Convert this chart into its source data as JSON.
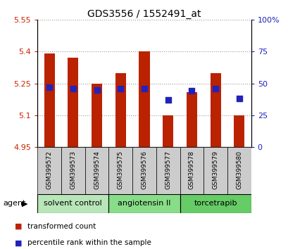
{
  "title": "GDS3556 / 1552491_at",
  "samples": [
    "GSM399572",
    "GSM399573",
    "GSM399574",
    "GSM399575",
    "GSM399576",
    "GSM399577",
    "GSM399578",
    "GSM399579",
    "GSM399580"
  ],
  "bar_values": [
    5.39,
    5.37,
    5.25,
    5.3,
    5.4,
    5.1,
    5.21,
    5.3,
    5.1
  ],
  "bar_base": 4.95,
  "percentile_values": [
    47,
    46,
    45,
    46,
    46,
    37,
    44,
    46,
    38
  ],
  "ylim_left": [
    4.95,
    5.55
  ],
  "ylim_right": [
    0,
    100
  ],
  "yticks_left": [
    4.95,
    5.1,
    5.25,
    5.4,
    5.55
  ],
  "yticks_right": [
    0,
    25,
    50,
    75,
    100
  ],
  "ytick_labels_left": [
    "4.95",
    "5.1",
    "5.25",
    "5.4",
    "5.55"
  ],
  "ytick_labels_right": [
    "0",
    "25",
    "50",
    "75",
    "100%"
  ],
  "bar_color": "#bb2200",
  "dot_color": "#2222bb",
  "grid_color": "#999999",
  "left_tick_color": "#cc2200",
  "right_tick_color": "#2222bb",
  "agent_groups": [
    {
      "label": "solvent control",
      "start": 0,
      "end": 3,
      "color": "#b8e6b8"
    },
    {
      "label": "angiotensin II",
      "start": 3,
      "end": 6,
      "color": "#88dd88"
    },
    {
      "label": "torcetrapib",
      "start": 6,
      "end": 9,
      "color": "#66cc66"
    }
  ],
  "legend_items": [
    {
      "label": "transformed count",
      "color": "#bb2200"
    },
    {
      "label": "percentile rank within the sample",
      "color": "#2222bb"
    }
  ],
  "agent_label": "agent",
  "bar_width": 0.45,
  "dot_size": 28
}
